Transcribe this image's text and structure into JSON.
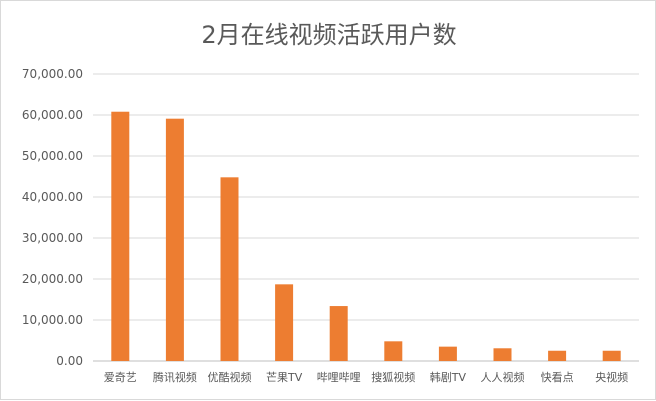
{
  "chart_data": {
    "type": "bar",
    "title": "2月在线视频活跃用户数",
    "categories": [
      "爱奇艺",
      "腾讯视频",
      "优酷视频",
      "芒果TV",
      "哔哩哔哩",
      "搜狐视频",
      "韩剧TV",
      "人人视频",
      "快看点",
      "央视频"
    ],
    "values": [
      60800,
      59100,
      44800,
      18700,
      13400,
      4800,
      3500,
      3100,
      2500,
      2500
    ],
    "ylim": [
      0,
      70000
    ],
    "yticks": [
      "0.00",
      "10,000.00",
      "20,000.00",
      "30,000.00",
      "40,000.00",
      "50,000.00",
      "60,000.00",
      "70,000.00"
    ],
    "ytick_values": [
      0,
      10000,
      20000,
      30000,
      40000,
      50000,
      60000,
      70000
    ],
    "grid": true,
    "legend": "none",
    "colors": {
      "bar": "#ED7D31"
    }
  }
}
